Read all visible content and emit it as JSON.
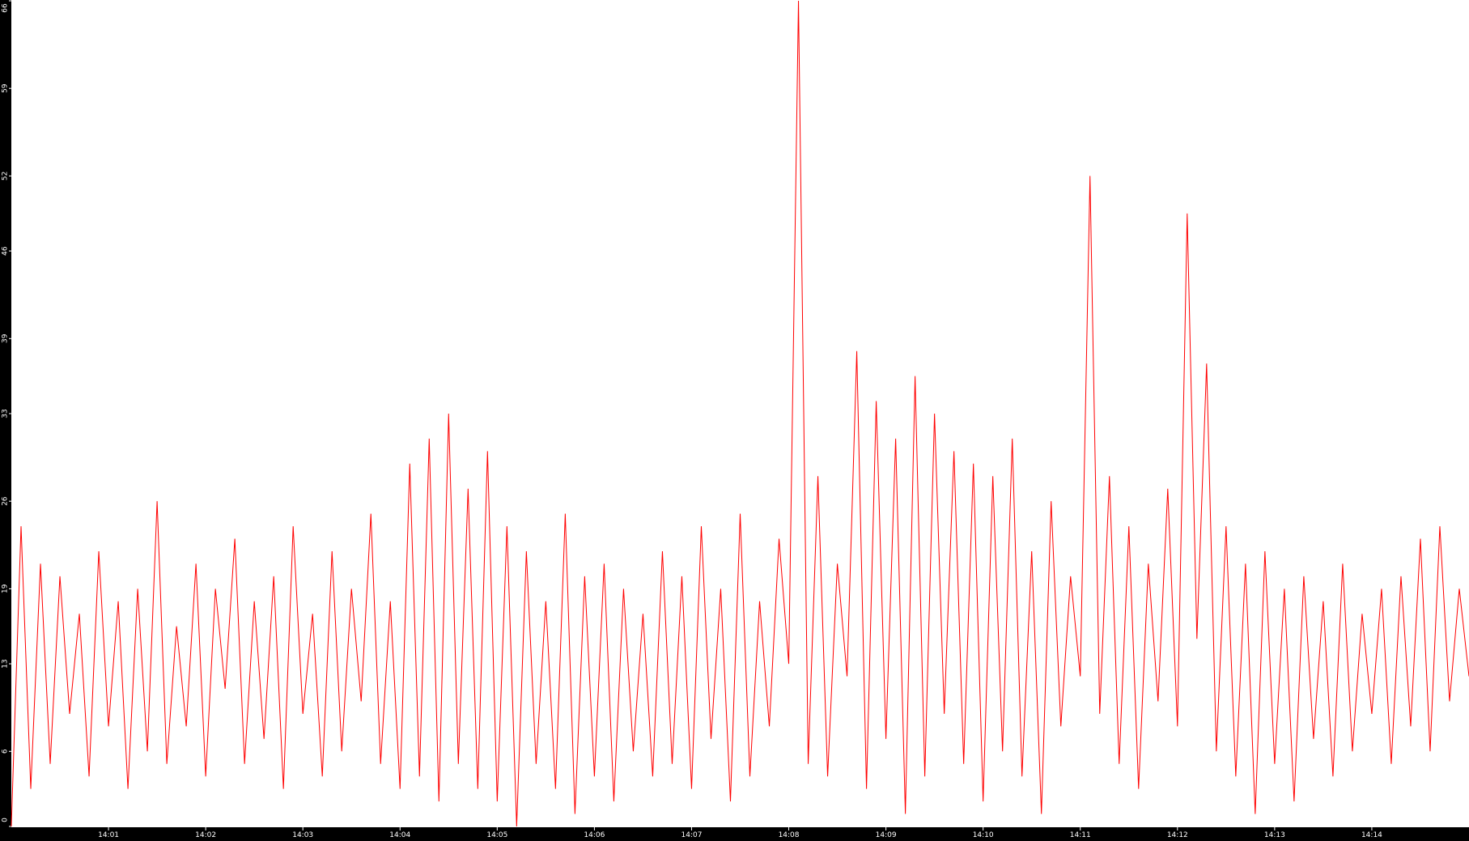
{
  "chart_data": {
    "type": "line",
    "x": [
      0,
      0.1,
      0.2,
      0.3,
      0.4,
      0.5,
      0.6,
      0.7,
      0.8,
      0.9,
      1,
      1.1,
      1.2,
      1.3,
      1.4,
      1.5,
      1.6,
      1.7,
      1.8,
      1.9,
      2,
      2.1,
      2.2,
      2.3,
      2.4,
      2.5,
      2.6,
      2.7,
      2.8,
      2.9,
      3,
      3.1,
      3.2,
      3.3,
      3.4,
      3.5,
      3.6,
      3.7,
      3.8,
      3.9,
      4,
      4.1,
      4.2,
      4.3,
      4.4,
      4.5,
      4.6,
      4.7,
      4.8,
      4.9,
      5,
      5.1,
      5.2,
      5.3,
      5.4,
      5.5,
      5.6,
      5.7,
      5.8,
      5.9,
      6,
      6.1,
      6.2,
      6.3,
      6.4,
      6.5,
      6.6,
      6.7,
      6.8,
      6.9,
      7,
      7.1,
      7.2,
      7.3,
      7.4,
      7.5,
      7.6,
      7.7,
      7.8,
      7.9,
      8,
      8.1,
      8.2,
      8.3,
      8.4,
      8.5,
      8.6,
      8.7,
      8.8,
      8.9,
      9,
      9.1,
      9.2,
      9.3,
      9.4,
      9.5,
      9.6,
      9.7,
      9.8,
      9.9,
      10,
      10.1,
      10.2,
      10.3,
      10.4,
      10.5,
      10.6,
      10.7,
      10.8,
      10.9,
      11,
      11.1,
      11.2,
      11.3,
      11.4,
      11.5,
      11.6,
      11.7,
      11.8,
      11.9,
      12,
      12.1,
      12.2,
      12.3,
      12.4,
      12.5,
      12.6,
      12.7,
      12.8,
      12.9,
      13,
      13.1,
      13.2,
      13.3,
      13.4,
      13.5,
      13.6,
      13.7,
      13.8,
      13.9,
      14,
      14.1,
      14.2,
      14.3,
      14.4,
      14.5,
      14.6,
      14.7,
      14.8,
      14.9,
      15
    ],
    "series": [
      {
        "color": "#ff0000",
        "values": [
          0,
          24,
          3,
          21,
          5,
          20,
          9,
          17,
          4,
          22,
          8,
          18,
          3,
          19,
          6,
          26,
          5,
          16,
          8,
          21,
          4,
          19,
          11,
          23,
          5,
          18,
          7,
          20,
          3,
          24,
          9,
          17,
          4,
          22,
          6,
          19,
          10,
          25,
          5,
          18,
          3,
          29,
          4,
          31,
          2,
          33,
          5,
          27,
          3,
          30,
          2,
          24,
          0,
          22,
          5,
          18,
          3,
          25,
          1,
          20,
          4,
          21,
          2,
          19,
          6,
          17,
          4,
          22,
          5,
          20,
          3,
          24,
          7,
          19,
          2,
          25,
          4,
          18,
          8,
          23,
          13,
          66,
          5,
          28,
          4,
          21,
          12,
          38,
          3,
          34,
          7,
          31,
          1,
          36,
          4,
          33,
          9,
          30,
          5,
          29,
          2,
          28,
          6,
          31,
          4,
          22,
          1,
          26,
          8,
          20,
          12,
          52,
          9,
          28,
          5,
          24,
          3,
          21,
          10,
          27,
          8,
          49,
          15,
          37,
          6,
          24,
          4,
          21,
          1,
          22,
          5,
          19,
          2,
          20,
          7,
          18,
          4,
          21,
          6,
          17,
          9,
          19,
          5,
          20,
          8,
          23,
          6,
          24,
          10,
          19,
          12
        ]
      }
    ],
    "xlim": [
      0,
      15
    ],
    "xticks": [
      {
        "value": 1,
        "label": "14:01"
      },
      {
        "value": 2,
        "label": "14:02"
      },
      {
        "value": 3,
        "label": "14:03"
      },
      {
        "value": 4,
        "label": "14:04"
      },
      {
        "value": 5,
        "label": "14:05"
      },
      {
        "value": 6,
        "label": "14:06"
      },
      {
        "value": 7,
        "label": "14:07"
      },
      {
        "value": 8,
        "label": "14:08"
      },
      {
        "value": 9,
        "label": "14:09"
      },
      {
        "value": 10,
        "label": "14:10"
      },
      {
        "value": 11,
        "label": "14:11"
      },
      {
        "value": 12,
        "label": "14:12"
      },
      {
        "value": 13,
        "label": "14:13"
      },
      {
        "value": 14,
        "label": "14:14"
      }
    ],
    "ylim": [
      0,
      66
    ],
    "yticks": [
      0,
      6,
      13,
      19,
      26,
      33,
      39,
      46,
      52,
      59,
      66
    ]
  }
}
